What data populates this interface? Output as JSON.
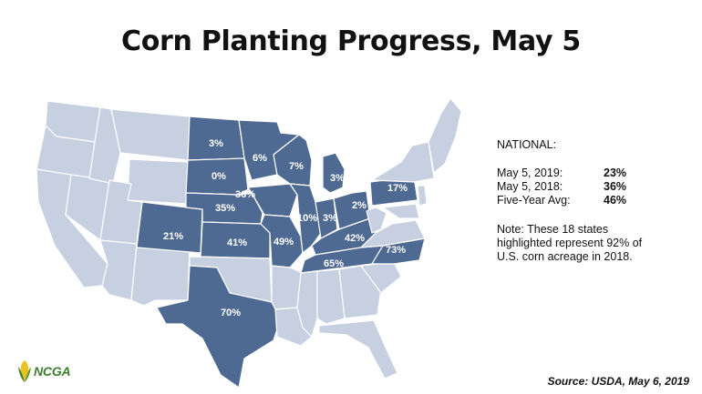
{
  "title": "Corn Planting Progress, May 5",
  "colors": {
    "highlight": "#4f6a92",
    "other": "#c7d0e0",
    "border": "#ffffff"
  },
  "map": {
    "highlighted_states": [
      {
        "state": "North Dakota",
        "value": "3%"
      },
      {
        "state": "South Dakota",
        "value": "0%"
      },
      {
        "state": "Nebraska",
        "value": "36%"
      },
      {
        "state": "Kansas",
        "value": "41%"
      },
      {
        "state": "Colorado",
        "value": "21%"
      },
      {
        "state": "Texas",
        "value": "70%"
      },
      {
        "state": "Minnesota",
        "value": "6%"
      },
      {
        "state": "Iowa",
        "value": "35%"
      },
      {
        "state": "Missouri",
        "value": "49%"
      },
      {
        "state": "Wisconsin",
        "value": "7%"
      },
      {
        "state": "Illinois",
        "value": "10%"
      },
      {
        "state": "Michigan",
        "value": "3%"
      },
      {
        "state": "Indiana",
        "value": "3%"
      },
      {
        "state": "Ohio",
        "value": "2%"
      },
      {
        "state": "Kentucky",
        "value": "42%"
      },
      {
        "state": "Tennessee",
        "value": "65%"
      },
      {
        "state": "North Carolina",
        "value": "73%"
      },
      {
        "state": "Pennsylvania",
        "value": "17%"
      }
    ]
  },
  "national": {
    "heading": "NATIONAL:",
    "rows": [
      {
        "label": "May 5, 2019:",
        "value": "23%"
      },
      {
        "label": "May 5, 2018:",
        "value": "36%"
      },
      {
        "label": "Five-Year Avg:",
        "value": "46%"
      }
    ],
    "note": "Note: These 18 states highlighted represent 92% of U.S. corn acreage in 2018."
  },
  "logo": {
    "text": "NCGA",
    "icon": "corn-icon"
  },
  "source": "Source: USDA, May 6, 2019"
}
